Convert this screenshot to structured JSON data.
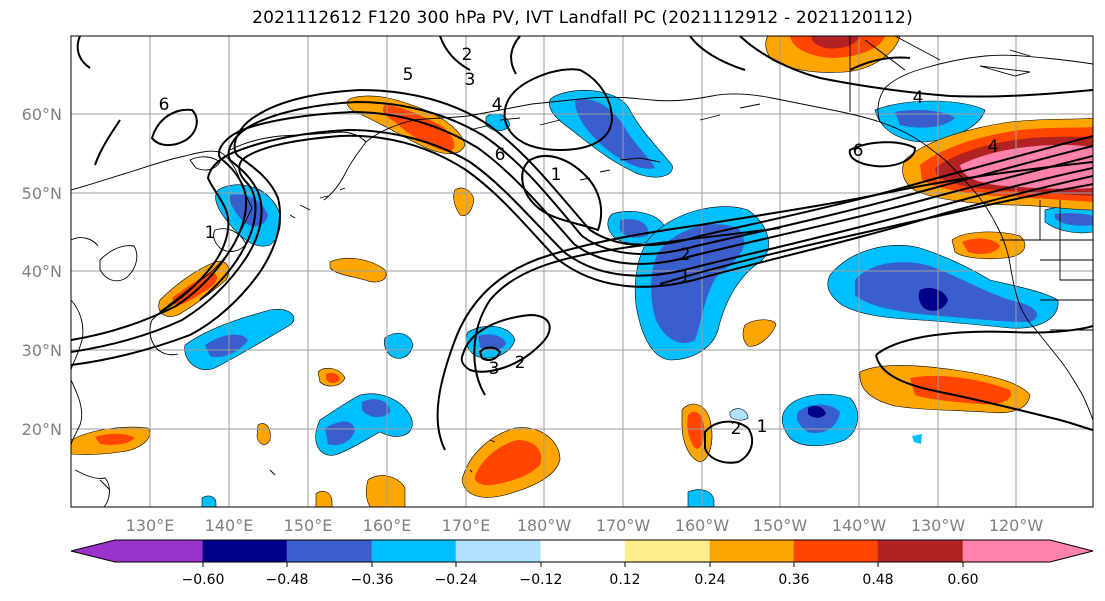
{
  "title": "2021112612 F120 300 hPa PV, IVT Landfall PC (2021112912 - 2021120112)",
  "map": {
    "lat_labels": [
      "60°N",
      "50°N",
      "40°N",
      "30°N",
      "20°N"
    ],
    "lon_labels": [
      "130°E",
      "140°E",
      "150°E",
      "160°E",
      "170°E",
      "180°W",
      "170°W",
      "160°W",
      "150°W",
      "140°W",
      "130°W",
      "120°W"
    ],
    "contour_labels": [
      "5",
      "2",
      "3",
      "6",
      "4",
      "6",
      "1",
      "4",
      "6",
      "4",
      "1",
      "2",
      "3",
      "2",
      "2",
      "1",
      "1"
    ]
  },
  "colorbar": {
    "ticks": [
      "−0.60",
      "−0.48",
      "−0.36",
      "−0.24",
      "−0.12",
      "0.12",
      "0.24",
      "0.36",
      "0.48",
      "0.60"
    ],
    "colors": [
      "#9932cc",
      "#00008b",
      "#3a5fcd",
      "#00bfff",
      "#b0e2ff",
      "#ffffff",
      "#ffec8b",
      "#ffa500",
      "#ff4500",
      "#b22222",
      "#ff82ab"
    ]
  },
  "fill_colors": {
    "neg2": "#00bfff",
    "neg3": "#3a5fcd",
    "neg4": "#00008b",
    "pos1": "#ffec8b",
    "pos2": "#ffa500",
    "pos3": "#ff4500",
    "pos4": "#b22222",
    "pos5": "#ff82ab"
  }
}
